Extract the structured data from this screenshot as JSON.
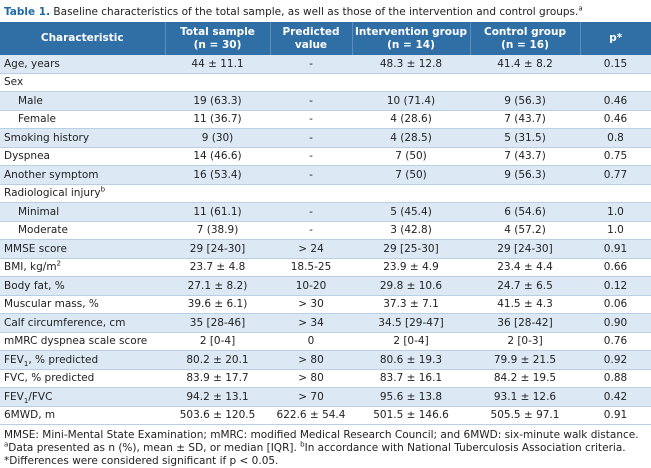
{
  "title": [
    {
      "b": "Table 1."
    },
    " Baseline characteristics of the total sample, as well as those of the intervention and control groups.",
    {
      "sup": "a"
    }
  ],
  "table": {
    "headers": [
      [
        "Characteristic"
      ],
      [
        "Total sample",
        "(n = 30)"
      ],
      [
        "Predicted",
        "value"
      ],
      [
        "Intervention group",
        "(n = 14)"
      ],
      [
        "Control group",
        "(n = 16)"
      ],
      [
        "p*"
      ]
    ],
    "rows": [
      [
        "Age, years",
        "44 ± 11.1",
        "-",
        "48.3 ± 12.8",
        "41.4 ± 8.2",
        "0.15"
      ],
      [
        "Sex"
      ],
      [
        "Male",
        "19 (63.3)",
        "-",
        "10 (71.4)",
        "9 (56.3)",
        "0.46"
      ],
      [
        "Female",
        "11 (36.7)",
        "-",
        "4 (28.6)",
        "7 (43.7)",
        "0.46"
      ],
      [
        "Smoking history",
        "9 (30)",
        "-",
        "4 (28.5)",
        "5 (31.5)",
        "0.8"
      ],
      [
        "Dyspnea",
        "14 (46.6)",
        "-",
        "7 (50)",
        "7 (43.7)",
        "0.75"
      ],
      [
        "Another symptom",
        "16 (53.4)",
        "-",
        "7 (50)",
        "9 (56.3)",
        "0.77"
      ],
      [
        [
          "Radiological injury",
          {
            "sup": "b"
          }
        ]
      ],
      [
        "Minimal",
        "11 (61.1)",
        "-",
        "5 (45.4)",
        "6 (54.6)",
        "1.0"
      ],
      [
        "Moderate",
        "7 (38.9)",
        "-",
        "3 (42.8)",
        "4 (57.2)",
        "1.0"
      ],
      [
        "MMSE score",
        "29 [24-30]",
        "> 24",
        "29 [25-30]",
        "29 [24-30]",
        "0.91"
      ],
      [
        [
          "BMI, kg/m",
          {
            "sup": "2"
          }
        ],
        "23.7 ± 4.8",
        "18.5-25",
        "23.9 ± 4.9",
        "23.4 ± 4.4",
        "0.66"
      ],
      [
        "Body fat, %",
        "27.1 ± 8.2)",
        "10-20",
        "29.8 ± 10.6",
        "24.7 ± 6.5",
        "0.12"
      ],
      [
        "Muscular mass, %",
        "39.6 ± 6.1)",
        "> 30",
        "37.3 ± 7.1",
        "41.5 ± 4.3",
        "0.06"
      ],
      [
        "Calf circumference, cm",
        "35 [28-46]",
        "> 34",
        "34.5 [29-47]",
        "36 [28-42]",
        "0.90"
      ],
      [
        "mMRC dyspnea scale score",
        "2 [0-4]",
        "0",
        "2 [0-4]",
        "2 [0-3]",
        "0.76"
      ],
      [
        [
          "FEV",
          {
            "sub": "1"
          },
          ", % predicted"
        ],
        "80.2 ± 20.1",
        "> 80",
        "80.6 ± 19.3",
        "79.9 ± 21.5",
        "0.92"
      ],
      [
        "FVC, % predicted",
        "83.9 ± 17.7",
        "> 80",
        "83.7 ± 16.1",
        "84.2 ± 19.5",
        "0.88"
      ],
      [
        [
          "FEV",
          {
            "sub": "1"
          },
          "/FVC"
        ],
        "94.2 ± 13.1",
        "> 70",
        "95.6 ± 13.8",
        "93.1 ± 12.6",
        "0.42"
      ],
      [
        "6MWD, m",
        "503.6 ± 120.5",
        "622.6 ± 54.4",
        "501.5 ± 146.6",
        "505.5 ± 97.1",
        "0.91"
      ]
    ],
    "indented_rows": [
      2,
      3,
      8,
      9
    ]
  },
  "footnote": [
    "MMSE: Mini-Mental State Examination; mMRC: modified Medical Research Council; and 6MWD: six-minute walk distance. ",
    {
      "sup": "a"
    },
    "Data presented as n (%), mean ± SD, or median [IQR]. ",
    {
      "sup": "b"
    },
    "In accordance with National Tuberculosis Association criteria. *Differences were considered significant if p < 0.05."
  ]
}
